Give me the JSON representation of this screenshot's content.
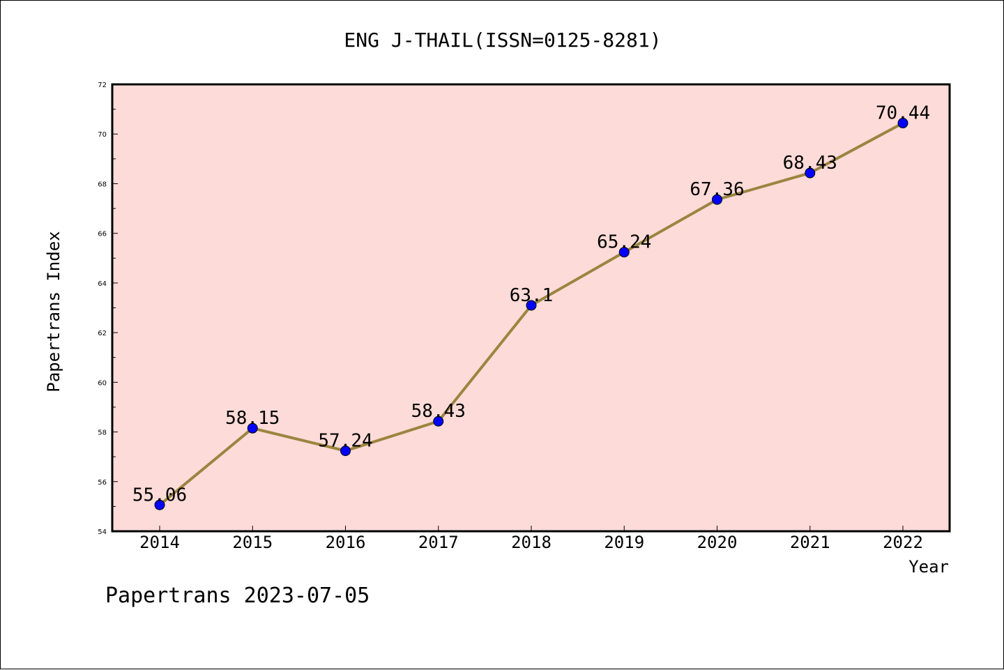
{
  "chart_data": {
    "type": "line",
    "title": "ENG J-THAIL(ISSN=0125-8281)",
    "xlabel": "Year",
    "ylabel": "Papertrans Index",
    "footer": "Papertrans 2023-07-05",
    "categories": [
      "2014",
      "2015",
      "2016",
      "2017",
      "2018",
      "2019",
      "2020",
      "2021",
      "2022"
    ],
    "values": [
      55.06,
      58.15,
      57.24,
      58.43,
      63.1,
      65.24,
      67.36,
      68.43,
      70.44
    ],
    "point_labels": [
      "55.06",
      "58.15",
      "57.24",
      "58.43",
      "63.1",
      "65.24",
      "67.36",
      "68.43",
      "70.44"
    ],
    "ylim": [
      54,
      72
    ],
    "yticks": [
      "54",
      "56",
      "58",
      "60",
      "62",
      "64",
      "66",
      "68",
      "70",
      "72"
    ],
    "grid": false,
    "colors": {
      "plot_background": "#fddbd8",
      "line": "#9a8540",
      "marker": "#0000ff"
    }
  }
}
